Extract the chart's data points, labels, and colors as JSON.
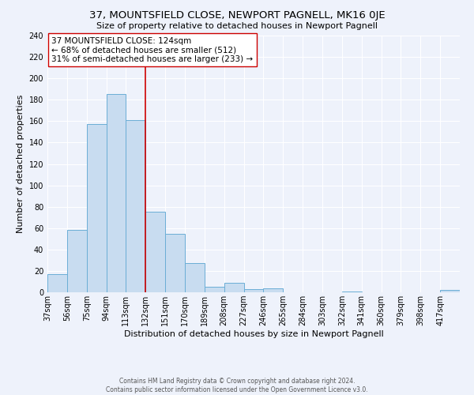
{
  "title": "37, MOUNTSFIELD CLOSE, NEWPORT PAGNELL, MK16 0JE",
  "subtitle": "Size of property relative to detached houses in Newport Pagnell",
  "xlabel": "Distribution of detached houses by size in Newport Pagnell",
  "ylabel": "Number of detached properties",
  "bin_labels": [
    "37sqm",
    "56sqm",
    "75sqm",
    "94sqm",
    "113sqm",
    "132sqm",
    "151sqm",
    "170sqm",
    "189sqm",
    "208sqm",
    "227sqm",
    "246sqm",
    "265sqm",
    "284sqm",
    "303sqm",
    "322sqm",
    "341sqm",
    "360sqm",
    "379sqm",
    "398sqm",
    "417sqm"
  ],
  "bin_values": [
    17,
    58,
    157,
    185,
    161,
    75,
    55,
    27,
    5,
    9,
    3,
    4,
    0,
    0,
    0,
    1,
    0,
    0,
    0,
    0,
    2
  ],
  "bar_color": "#c8dcf0",
  "bar_edge_color": "#6baed6",
  "vline_x": 5,
  "vline_color": "#cc0000",
  "ylim": [
    0,
    240
  ],
  "yticks": [
    0,
    20,
    40,
    60,
    80,
    100,
    120,
    140,
    160,
    180,
    200,
    220,
    240
  ],
  "annotation_text": "37 MOUNTSFIELD CLOSE: 124sqm\n← 68% of detached houses are smaller (512)\n31% of semi-detached houses are larger (233) →",
  "annotation_box_color": "#ffffff",
  "annotation_box_edge": "#cc0000",
  "footer_text": "Contains HM Land Registry data © Crown copyright and database right 2024.\nContains public sector information licensed under the Open Government Licence v3.0.",
  "background_color": "#eef2fb",
  "grid_color": "#ffffff",
  "title_fontsize": 9.5,
  "subtitle_fontsize": 8.0,
  "axis_label_fontsize": 8.0,
  "tick_fontsize": 7.0,
  "footer_fontsize": 5.5,
  "annotation_fontsize": 7.5
}
